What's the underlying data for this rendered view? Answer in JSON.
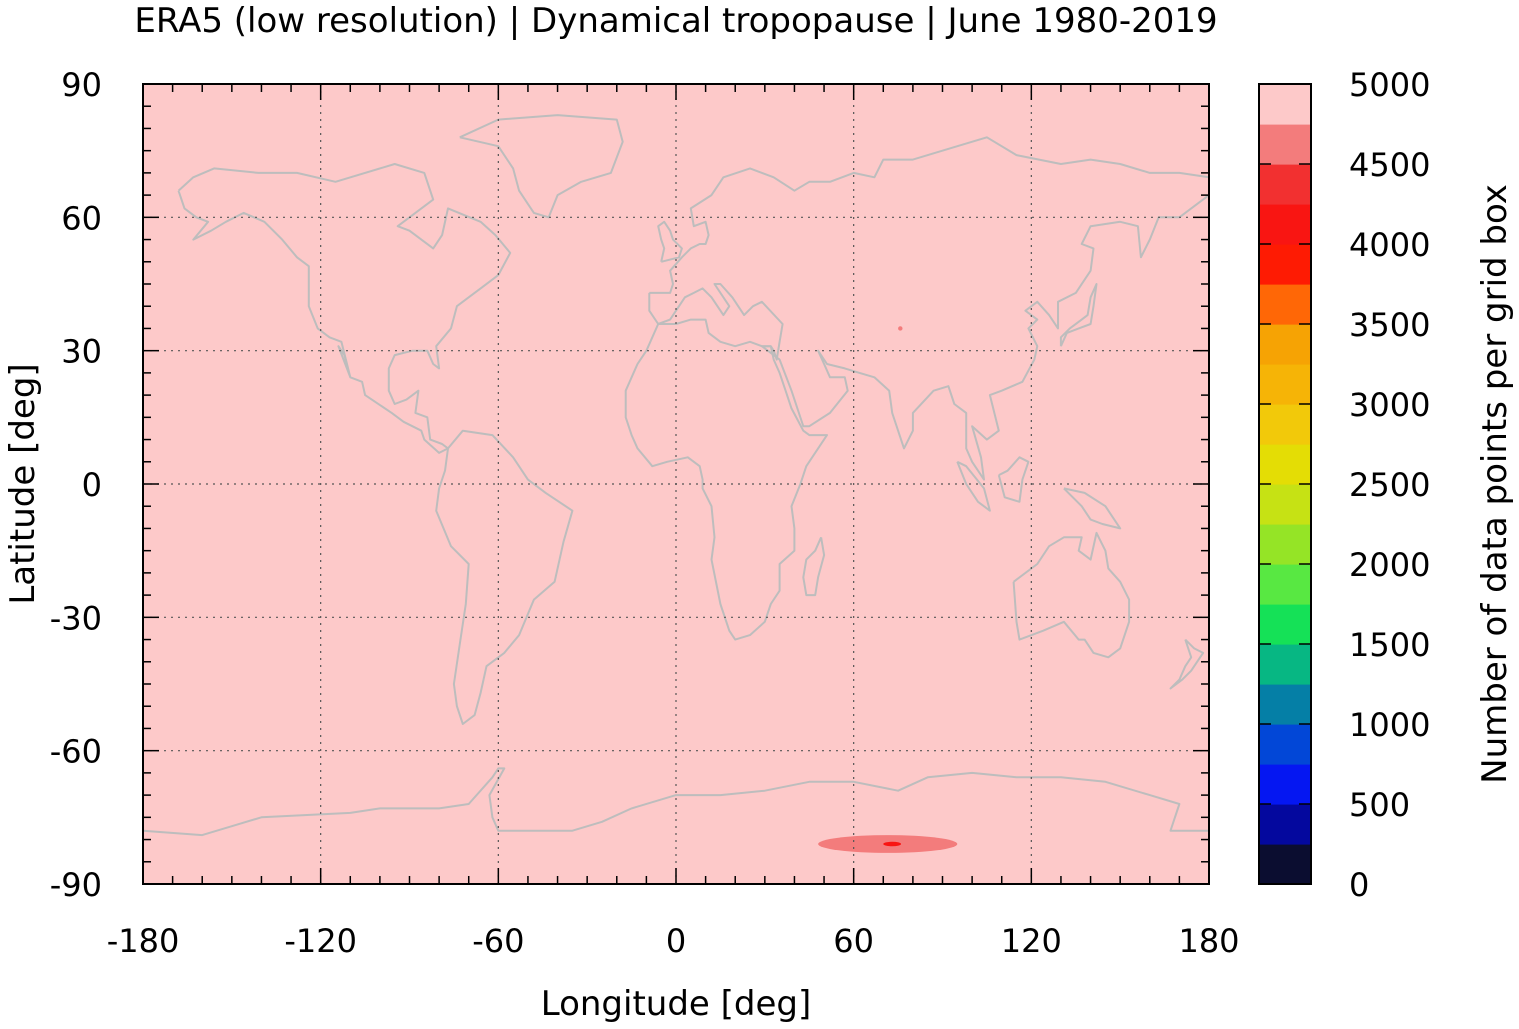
{
  "chart_data": {
    "type": "heatmap",
    "title": "ERA5 (low resolution) | Dynamical tropopause | June 1980-2019",
    "xlabel": "Longitude [deg]",
    "ylabel": "Latitude [deg]",
    "xlim": [
      -180,
      180
    ],
    "ylim": [
      -90,
      90
    ],
    "xticks": [
      "-180",
      "-120",
      "-60",
      "0",
      "60",
      "120",
      "180"
    ],
    "yticks": [
      "90",
      "60",
      "30",
      "0",
      "-30",
      "-60",
      "-90"
    ],
    "grid": true,
    "background_value_color": "#fdc9c9",
    "coastline_color": "#bdbdbd",
    "colorbar": {
      "label": "Number of data points per grid box",
      "range": [
        0,
        5000
      ],
      "ticks": [
        "5000",
        "4500",
        "4000",
        "3500",
        "3000",
        "2500",
        "2000",
        "1500",
        "1000",
        "500",
        "0"
      ],
      "colors": [
        "#0b0d30",
        "#04089e",
        "#0517f2",
        "#0247d7",
        "#057fa6",
        "#07b783",
        "#15e157",
        "#58e842",
        "#95e426",
        "#c6e214",
        "#e4dd05",
        "#f2c90a",
        "#f6b406",
        "#f6a304",
        "#ff6706",
        "#fe1b03",
        "#f91512",
        "#f23030",
        "#f37c7c",
        "#fdc9c9"
      ]
    },
    "anomalies": [
      {
        "region": "Antarctica (East)",
        "lon": [
          48,
          95
        ],
        "lat": [
          -83,
          -79
        ],
        "value": 4650
      },
      {
        "region": "Antarctica (East) core",
        "lon": [
          70,
          76
        ],
        "lat": [
          -81.5,
          -80.5
        ],
        "value": 4200
      },
      {
        "region": "Tibetan Plateau",
        "lon": [
          75,
          76.5
        ],
        "lat": [
          34.5,
          35.5
        ],
        "value": 4650
      }
    ]
  }
}
